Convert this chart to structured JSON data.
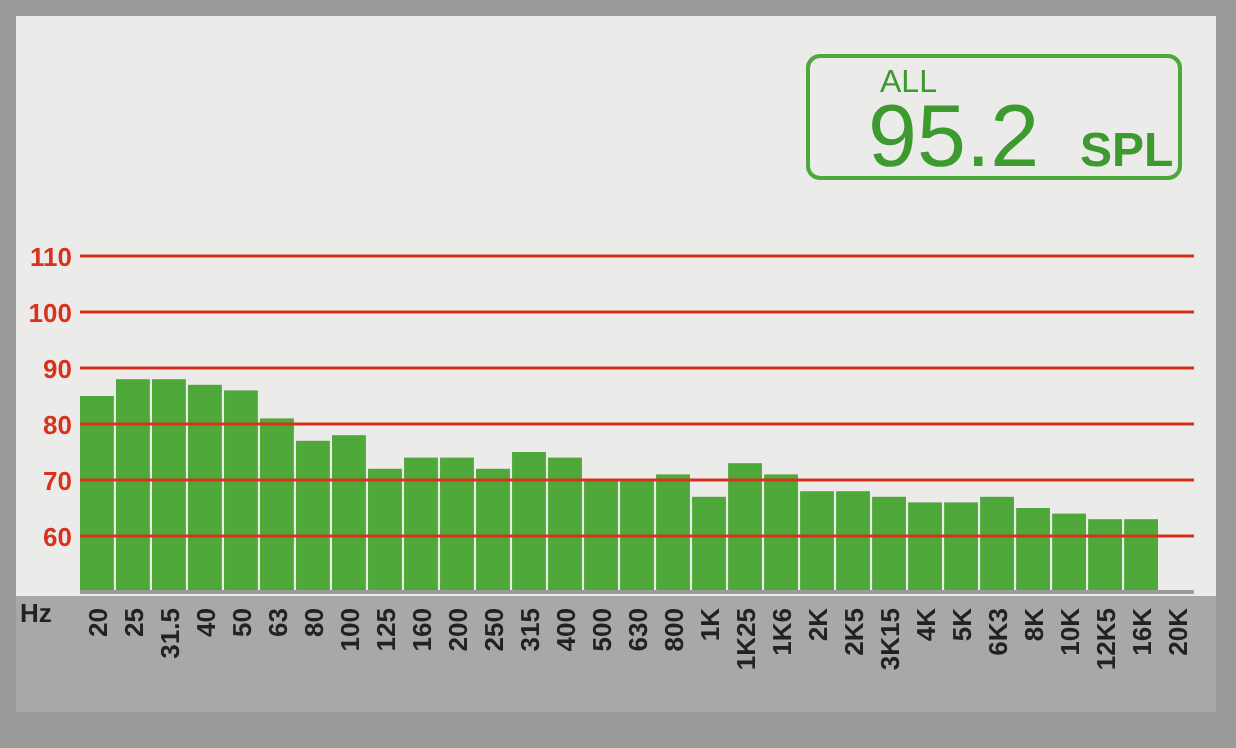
{
  "chart_data": {
    "type": "bar",
    "xlabel": "Hz",
    "categories": [
      "20",
      "25",
      "31.5",
      "40",
      "50",
      "63",
      "80",
      "100",
      "125",
      "160",
      "200",
      "250",
      "315",
      "400",
      "500",
      "630",
      "800",
      "1K",
      "1K25",
      "1K6",
      "2K",
      "2K5",
      "3K15",
      "4K",
      "5K",
      "6K3",
      "8K",
      "10K",
      "12K5",
      "16K",
      "20K"
    ],
    "values": [
      85,
      88,
      88,
      87,
      86,
      81,
      77,
      78,
      72,
      74,
      74,
      72,
      75,
      74,
      70,
      70,
      71,
      67,
      73,
      71,
      68,
      68,
      67,
      66,
      66,
      67,
      65,
      64,
      63,
      63,
      null
    ],
    "color": "#4fa83a",
    "ylim": [
      50,
      110
    ],
    "yticks": [
      60,
      70,
      80,
      90,
      100,
      110
    ],
    "grid": "y",
    "annotations": [
      "ALL",
      "95.2",
      "SPL"
    ]
  }
}
